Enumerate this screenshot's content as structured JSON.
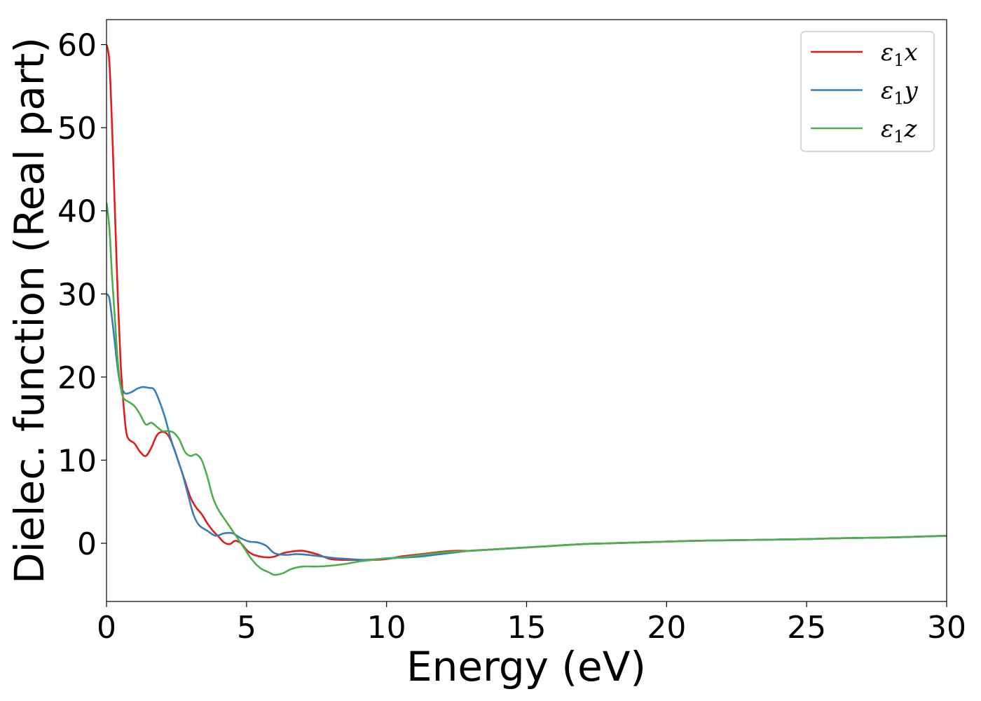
{
  "chart_data": {
    "type": "line",
    "title": "",
    "xlabel": "Energy (eV)",
    "ylabel": "Dielec. function (Real part)",
    "xlim": [
      0,
      30
    ],
    "ylim": [
      -7,
      63
    ],
    "xticks": [
      0,
      5,
      10,
      15,
      20,
      25,
      30
    ],
    "yticks": [
      0,
      10,
      20,
      30,
      40,
      50,
      60
    ],
    "grid": false,
    "legend_position": "top-right",
    "series": [
      {
        "name": "ε1x",
        "legend_base": "ε",
        "legend_sub": "1",
        "legend_suffix": "x",
        "color": "#e41a1c",
        "x": [
          0,
          0.1,
          0.2,
          0.3,
          0.4,
          0.5,
          0.6,
          0.7,
          0.8,
          1.0,
          1.2,
          1.4,
          1.6,
          1.8,
          2.0,
          2.2,
          2.4,
          2.6,
          2.8,
          3.0,
          3.2,
          3.4,
          3.6,
          3.8,
          4.0,
          4.2,
          4.4,
          4.6,
          4.8,
          5.0,
          5.2,
          5.5,
          5.8,
          6.0,
          6.3,
          6.6,
          7.0,
          7.5,
          8.0,
          8.5,
          9.0,
          9.5,
          10.0,
          10.5,
          11,
          11.5,
          12,
          12.5,
          13,
          14,
          15,
          16,
          17,
          18,
          19,
          20,
          21,
          22,
          23,
          24,
          25,
          26,
          27,
          28,
          29,
          30
        ],
        "values": [
          60,
          58,
          50,
          40,
          30,
          22,
          17,
          13.5,
          12.5,
          12,
          11,
          10.5,
          11.5,
          13,
          13.4,
          13,
          11.5,
          9.5,
          7.5,
          5.5,
          4.3,
          3.5,
          2.4,
          1.5,
          0.8,
          0.1,
          -0.1,
          0.3,
          0,
          -0.8,
          -1.3,
          -1.6,
          -1.7,
          -1.6,
          -1.2,
          -1.0,
          -0.9,
          -1.3,
          -1.9,
          -2.0,
          -2.0,
          -2.0,
          -1.9,
          -1.6,
          -1.4,
          -1.2,
          -1.0,
          -0.9,
          -0.9,
          -0.7,
          -0.5,
          -0.3,
          -0.1,
          0.0,
          0.1,
          0.2,
          0.3,
          0.35,
          0.4,
          0.45,
          0.5,
          0.6,
          0.65,
          0.7,
          0.8,
          0.9
        ]
      },
      {
        "name": "ε1y",
        "legend_base": "ε",
        "legend_sub": "1",
        "legend_suffix": "y",
        "color": "#377eb8",
        "x": [
          0,
          0.1,
          0.2,
          0.3,
          0.4,
          0.5,
          0.6,
          0.7,
          0.9,
          1.1,
          1.3,
          1.5,
          1.7,
          1.9,
          2.1,
          2.3,
          2.5,
          2.7,
          2.9,
          3.1,
          3.3,
          3.6,
          3.9,
          4.2,
          4.5,
          4.8,
          5.1,
          5.4,
          5.7,
          6.0,
          6.4,
          6.8,
          7.2,
          7.7,
          8.2,
          8.7,
          9.2,
          9.7,
          10.2,
          10.7,
          11.2,
          11.7,
          12.2,
          13,
          14,
          15,
          16,
          17,
          18,
          19,
          20,
          21,
          22,
          23,
          24,
          25,
          26,
          27,
          28,
          29,
          30
        ],
        "values": [
          30,
          29.5,
          27,
          24,
          21,
          19,
          18.3,
          18,
          18.2,
          18.6,
          18.8,
          18.7,
          18.5,
          17,
          15,
          12.5,
          10.5,
          8.5,
          6,
          3.5,
          2.2,
          1.5,
          0.9,
          1.2,
          1.2,
          0.6,
          0.2,
          0.1,
          -0.3,
          -1.2,
          -1.4,
          -1.3,
          -1.4,
          -1.6,
          -1.8,
          -1.9,
          -2.0,
          -1.9,
          -1.8,
          -1.7,
          -1.6,
          -1.4,
          -1.2,
          -0.9,
          -0.7,
          -0.5,
          -0.3,
          -0.1,
          0.0,
          0.1,
          0.2,
          0.3,
          0.35,
          0.4,
          0.45,
          0.5,
          0.6,
          0.65,
          0.7,
          0.8,
          0.9
        ]
      },
      {
        "name": "ε1z",
        "legend_base": "ε",
        "legend_sub": "1",
        "legend_suffix": "z",
        "color": "#4daf4a",
        "x": [
          0,
          0.1,
          0.2,
          0.3,
          0.4,
          0.5,
          0.6,
          0.8,
          1.0,
          1.2,
          1.4,
          1.6,
          1.8,
          2.0,
          2.2,
          2.4,
          2.6,
          2.8,
          3.0,
          3.2,
          3.4,
          3.6,
          3.8,
          4.0,
          4.3,
          4.6,
          4.9,
          5.2,
          5.5,
          5.8,
          6.0,
          6.3,
          6.6,
          7.0,
          7.5,
          8.0,
          8.5,
          9.0,
          9.5,
          10.0,
          10.5,
          11,
          11.5,
          12,
          12.5,
          13,
          14,
          15,
          16,
          17,
          18,
          19,
          20,
          21,
          22,
          23,
          24,
          25,
          26,
          27,
          28,
          29,
          30
        ],
        "values": [
          41,
          38,
          32,
          27,
          22,
          19,
          17.5,
          17,
          16.5,
          15.5,
          14.3,
          14.5,
          14,
          13.5,
          13.5,
          13.3,
          12.5,
          11,
          10.5,
          10.7,
          10,
          8,
          5.5,
          4,
          2.5,
          1,
          -0.5,
          -2,
          -3,
          -3.5,
          -3.8,
          -3.6,
          -3.1,
          -2.8,
          -2.8,
          -2.7,
          -2.5,
          -2.2,
          -2.0,
          -1.8,
          -1.7,
          -1.5,
          -1.3,
          -1.1,
          -1.0,
          -0.9,
          -0.7,
          -0.5,
          -0.3,
          -0.1,
          0.0,
          0.1,
          0.2,
          0.3,
          0.35,
          0.4,
          0.45,
          0.5,
          0.6,
          0.65,
          0.7,
          0.8,
          0.9
        ]
      }
    ]
  }
}
